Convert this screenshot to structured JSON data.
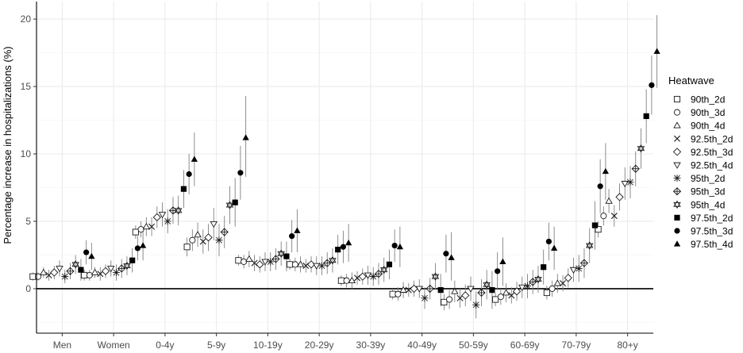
{
  "chart_data": {
    "type": "scatter",
    "title": "",
    "xlabel": "",
    "ylabel": "Percentage increase in hospitalizations (%)",
    "ylim": [
      -3.3,
      21.3
    ],
    "yticks": [
      0,
      5,
      10,
      15,
      20
    ],
    "grid": true,
    "reference_line_y": 0,
    "legend_title": "Heatwave",
    "legend_position": "right",
    "categories": [
      "Men",
      "Women",
      "0-4y",
      "5-9y",
      "10-19y",
      "20-29y",
      "30-39y",
      "40-49y",
      "50-59y",
      "60-69y",
      "70-79y",
      "80+y"
    ],
    "series": [
      {
        "name": "90th_2d",
        "marker": "open-square",
        "values": [
          0.9,
          1.0,
          4.2,
          3.1,
          2.1,
          1.8,
          0.6,
          -0.4,
          -1.0,
          -0.8,
          -0.3,
          4.4
        ],
        "ci_low": [
          0.6,
          0.6,
          3.7,
          2.4,
          1.7,
          1.4,
          0.2,
          -0.8,
          -1.6,
          -1.3,
          -0.8,
          3.8
        ],
        "ci_high": [
          1.2,
          1.4,
          4.7,
          3.8,
          2.5,
          2.2,
          1.0,
          0.0,
          -0.4,
          -0.3,
          0.2,
          5.0
        ]
      },
      {
        "name": "90th_3d",
        "marker": "open-circle",
        "values": [
          0.9,
          1.0,
          4.4,
          3.6,
          2.0,
          1.8,
          0.6,
          -0.4,
          -0.8,
          -0.6,
          0.0,
          5.4
        ],
        "ci_low": [
          0.6,
          0.6,
          3.8,
          2.8,
          1.5,
          1.3,
          0.1,
          -0.9,
          -1.5,
          -1.2,
          -0.6,
          4.7
        ],
        "ci_high": [
          1.2,
          1.4,
          5.0,
          4.4,
          2.5,
          2.3,
          1.1,
          0.1,
          -0.1,
          0.0,
          0.6,
          6.1
        ]
      },
      {
        "name": "90th_4d",
        "marker": "open-triangle-up",
        "values": [
          1.2,
          1.2,
          4.6,
          4.0,
          2.2,
          1.8,
          0.6,
          -0.1,
          -0.2,
          -0.3,
          0.4,
          6.5
        ],
        "ci_low": [
          0.8,
          0.8,
          3.9,
          3.1,
          1.6,
          1.2,
          0.0,
          -0.7,
          -1.0,
          -1.0,
          -0.3,
          5.6
        ],
        "ci_high": [
          1.6,
          1.6,
          5.3,
          4.9,
          2.8,
          2.4,
          1.2,
          0.5,
          0.6,
          0.4,
          1.1,
          7.4
        ]
      },
      {
        "name": "92.5th_2d",
        "marker": "cross",
        "values": [
          1.0,
          1.1,
          4.6,
          3.5,
          1.9,
          1.7,
          0.8,
          -0.1,
          -0.7,
          -0.5,
          0.4,
          5.4
        ],
        "ci_low": [
          0.6,
          0.6,
          3.9,
          2.6,
          1.3,
          1.2,
          0.3,
          -0.6,
          -1.4,
          -1.1,
          -0.2,
          4.6
        ],
        "ci_high": [
          1.4,
          1.6,
          5.3,
          4.4,
          2.5,
          2.2,
          1.3,
          0.4,
          0.0,
          0.1,
          1.0,
          6.2
        ]
      },
      {
        "name": "92.5th_3d",
        "marker": "open-diamond",
        "values": [
          1.2,
          1.3,
          5.3,
          3.8,
          1.8,
          1.8,
          0.9,
          0.0,
          -0.5,
          -0.2,
          0.8,
          6.8
        ],
        "ci_low": [
          0.7,
          0.8,
          4.5,
          2.8,
          1.2,
          1.2,
          0.3,
          -0.6,
          -1.3,
          -0.9,
          0.1,
          5.8
        ],
        "ci_high": [
          1.7,
          1.8,
          6.1,
          4.8,
          2.4,
          2.4,
          1.5,
          0.6,
          0.3,
          0.5,
          1.5,
          7.8
        ]
      },
      {
        "name": "92.5th_4d",
        "marker": "open-triangle-down",
        "values": [
          1.5,
          1.5,
          5.5,
          4.8,
          2.0,
          1.7,
          1.0,
          0.0,
          0.0,
          0.1,
          1.4,
          7.8
        ],
        "ci_low": [
          0.9,
          0.9,
          4.6,
          3.6,
          1.3,
          1.0,
          0.3,
          -0.7,
          -0.9,
          -0.7,
          0.5,
          6.6
        ],
        "ci_high": [
          2.1,
          2.1,
          6.4,
          6.0,
          2.7,
          2.4,
          1.7,
          0.7,
          0.9,
          0.9,
          2.3,
          9.0
        ]
      },
      {
        "name": "95th_2d",
        "marker": "asterisk",
        "values": [
          0.9,
          1.2,
          5.0,
          3.6,
          2.0,
          1.7,
          0.9,
          -0.7,
          -1.2,
          0.2,
          1.5,
          7.9
        ],
        "ci_low": [
          0.4,
          0.6,
          4.1,
          2.4,
          1.3,
          1.0,
          0.2,
          -1.5,
          -2.2,
          -0.7,
          0.5,
          6.7
        ],
        "ci_high": [
          1.4,
          1.8,
          5.9,
          4.8,
          2.7,
          2.4,
          1.6,
          0.1,
          -0.2,
          1.1,
          2.5,
          9.1
        ]
      },
      {
        "name": "95th_3d",
        "marker": "open-diamond-plus",
        "values": [
          1.3,
          1.5,
          5.8,
          4.2,
          2.2,
          1.9,
          1.1,
          0.0,
          -0.3,
          0.5,
          1.9,
          8.9
        ],
        "ci_low": [
          0.7,
          0.8,
          4.8,
          3.0,
          1.4,
          1.1,
          0.3,
          -0.8,
          -1.3,
          -0.4,
          0.8,
          7.6
        ],
        "ci_high": [
          1.9,
          2.2,
          6.8,
          5.4,
          3.0,
          2.7,
          1.9,
          0.8,
          0.7,
          1.4,
          3.0,
          10.2
        ]
      },
      {
        "name": "95th_4d",
        "marker": "open-hexagram",
        "values": [
          1.8,
          1.7,
          5.8,
          6.2,
          2.6,
          2.1,
          1.4,
          0.9,
          0.3,
          0.7,
          3.2,
          10.4
        ],
        "ci_low": [
          1.1,
          1.0,
          4.7,
          4.8,
          1.7,
          1.2,
          0.5,
          -0.1,
          -0.8,
          -0.3,
          1.9,
          8.9
        ],
        "ci_high": [
          2.5,
          2.4,
          6.9,
          7.6,
          3.5,
          3.0,
          2.3,
          1.9,
          1.4,
          1.7,
          4.5,
          11.9
        ]
      },
      {
        "name": "97.5th_2d",
        "marker": "filled-square",
        "values": [
          1.4,
          2.1,
          7.4,
          6.4,
          2.4,
          2.9,
          1.8,
          -0.1,
          -0.1,
          1.6,
          4.7,
          12.8
        ],
        "ci_low": [
          0.6,
          1.2,
          6.0,
          4.6,
          1.3,
          1.8,
          0.7,
          -1.3,
          -1.5,
          0.3,
          2.9,
          10.8
        ],
        "ci_high": [
          2.2,
          3.0,
          8.8,
          8.2,
          3.5,
          4.0,
          2.9,
          1.1,
          1.3,
          2.9,
          6.5,
          14.8
        ]
      },
      {
        "name": "97.5th_3d",
        "marker": "filled-circle",
        "values": [
          2.7,
          3.0,
          8.5,
          8.6,
          3.9,
          3.1,
          3.2,
          2.6,
          1.3,
          3.5,
          7.6,
          15.1
        ],
        "ci_low": [
          1.8,
          2.1,
          7.0,
          6.6,
          2.7,
          1.9,
          2.0,
          1.2,
          -0.1,
          2.1,
          5.6,
          12.9
        ],
        "ci_high": [
          3.6,
          3.9,
          10.0,
          10.6,
          5.1,
          4.3,
          4.4,
          4.0,
          2.7,
          4.9,
          9.6,
          17.3
        ]
      },
      {
        "name": "97.5th_4d",
        "marker": "filled-triangle-up",
        "values": [
          2.4,
          3.2,
          9.6,
          11.2,
          4.3,
          3.4,
          3.1,
          2.3,
          2.0,
          3.0,
          8.7,
          17.6
        ],
        "ci_low": [
          1.4,
          2.1,
          7.6,
          8.3,
          2.7,
          2.0,
          1.6,
          0.6,
          0.2,
          1.4,
          6.6,
          14.9
        ],
        "ci_high": [
          3.4,
          4.3,
          11.6,
          14.3,
          5.9,
          4.8,
          4.6,
          4.2,
          3.8,
          4.6,
          10.8,
          20.3
        ]
      }
    ]
  }
}
